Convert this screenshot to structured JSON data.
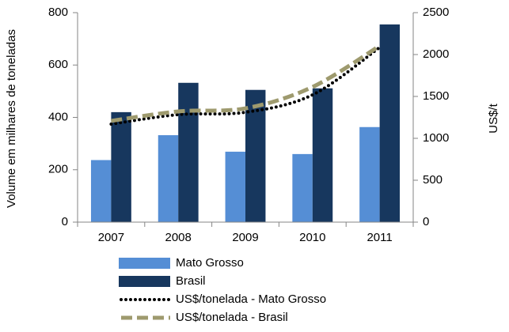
{
  "chart_data": {
    "type": "bar",
    "categories": [
      "2007",
      "2008",
      "2009",
      "2010",
      "2011"
    ],
    "ylabel": "Volume em milhares de toneladas",
    "y2label": "US$/t",
    "ylim": [
      0,
      800
    ],
    "yticks": [
      0,
      200,
      400,
      600,
      800
    ],
    "y2lim": [
      0,
      2500
    ],
    "y2ticks": [
      0,
      500,
      1000,
      1500,
      2000,
      2500
    ],
    "legend": "bottom",
    "series": [
      {
        "name": "Mato Grosso",
        "type": "bar",
        "color": "#558ed5",
        "values": [
          237,
          332,
          269,
          260,
          363
        ]
      },
      {
        "name": "Brasil",
        "type": "bar",
        "color": "#17375e",
        "values": [
          420,
          532,
          505,
          511,
          755
        ]
      },
      {
        "name": "US$/tonelada - Mato Grosso",
        "type": "line",
        "axis": "y2",
        "style": "dotted",
        "color": "#000000",
        "values": [
          1170,
          1283,
          1311,
          1519,
          2085
        ]
      },
      {
        "name": "US$/tonelada - Brasil",
        "type": "line",
        "axis": "y2",
        "style": "dashed",
        "color": "#9e9a6e",
        "values": [
          1208,
          1321,
          1358,
          1613,
          2104
        ]
      }
    ]
  }
}
